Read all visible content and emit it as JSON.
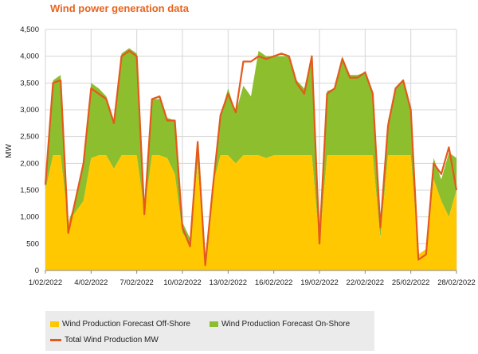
{
  "chart_data": {
    "type": "area",
    "title": "Wind power generation data",
    "xlabel": "",
    "ylabel": "MW",
    "ylim": [
      0,
      4500
    ],
    "yticks": [
      0,
      500,
      1000,
      1500,
      2000,
      2500,
      3000,
      3500,
      4000,
      4500
    ],
    "ytick_labels": [
      "0",
      "500",
      "1,000",
      "1,500",
      "2,000",
      "2,500",
      "3,000",
      "3,500",
      "4,000",
      "4,500"
    ],
    "xlim": [
      1,
      28
    ],
    "xticks": [
      1,
      4,
      7,
      10,
      13,
      16,
      19,
      22,
      25,
      28
    ],
    "xtick_labels": [
      "1/02/2022",
      "4/02/2022",
      "7/02/2022",
      "10/02/2022",
      "13/02/2022",
      "16/02/2022",
      "19/02/2022",
      "22/02/2022",
      "25/02/2022",
      "28/02/2022"
    ],
    "grid": true,
    "legend_position": "bottom-left",
    "x": [
      1.0,
      1.5,
      2.0,
      2.5,
      3.0,
      3.5,
      4.0,
      4.5,
      5.0,
      5.5,
      6.0,
      6.5,
      7.0,
      7.5,
      8.0,
      8.5,
      9.0,
      9.5,
      10.0,
      10.5,
      11.0,
      11.5,
      12.0,
      12.5,
      13.0,
      13.5,
      14.0,
      14.5,
      15.0,
      15.5,
      16.0,
      16.5,
      17.0,
      17.5,
      18.0,
      18.5,
      19.0,
      19.5,
      20.0,
      20.5,
      21.0,
      21.5,
      22.0,
      22.5,
      23.0,
      23.5,
      24.0,
      24.5,
      25.0,
      25.5,
      26.0,
      26.5,
      27.0,
      27.5,
      28.0
    ],
    "series": [
      {
        "name": "Wind Production Forecast Off-Shore",
        "color": "#ffc800",
        "values": [
          1500,
          2150,
          2150,
          900,
          1100,
          1300,
          2100,
          2150,
          2150,
          1900,
          2150,
          2150,
          2150,
          1100,
          2150,
          2150,
          2100,
          1800,
          700,
          500,
          2000,
          100,
          1600,
          2150,
          2150,
          2000,
          2150,
          2150,
          2150,
          2100,
          2150,
          2150,
          2150,
          2150,
          2150,
          2150,
          500,
          2150,
          2150,
          2150,
          2150,
          2150,
          2150,
          2150,
          600,
          2150,
          2150,
          2150,
          2150,
          300,
          400,
          1700,
          1300,
          1000,
          1500
        ]
      },
      {
        "name": "Wind Production Forecast On-Shore",
        "color": "#8cbe2e",
        "values": [
          0,
          1400,
          1500,
          0,
          200,
          700,
          1400,
          1250,
          1100,
          900,
          1900,
          2000,
          1900,
          100,
          1050,
          1050,
          750,
          1000,
          200,
          100,
          450,
          50,
          0,
          750,
          1250,
          950,
          1300,
          1100,
          1950,
          1900,
          1850,
          1850,
          1850,
          1400,
          1250,
          1850,
          100,
          1200,
          1250,
          1850,
          1500,
          1500,
          1550,
          1200,
          300,
          650,
          1250,
          1400,
          850,
          0,
          0,
          400,
          400,
          1200,
          600
        ]
      },
      {
        "name": "Total Wind Production MW",
        "color": "#e45a1c",
        "values": [
          1600,
          3500,
          3550,
          700,
          1350,
          2000,
          3400,
          3300,
          3200,
          2750,
          4000,
          4100,
          4000,
          1050,
          3200,
          3250,
          2800,
          2800,
          800,
          450,
          2400,
          100,
          1550,
          2900,
          3300,
          2950,
          3900,
          3900,
          4000,
          3950,
          4000,
          4050,
          4000,
          3500,
          3300,
          4000,
          500,
          3300,
          3400,
          3950,
          3600,
          3600,
          3700,
          3300,
          800,
          2700,
          3400,
          3550,
          3000,
          200,
          300,
          2000,
          1800,
          2300,
          1500
        ]
      }
    ]
  }
}
